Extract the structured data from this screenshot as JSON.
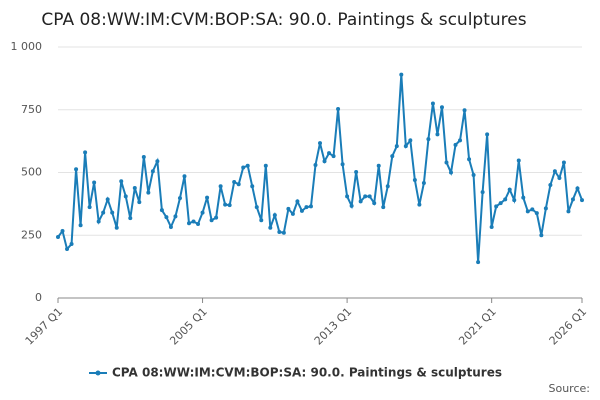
{
  "chart_data": {
    "type": "line",
    "title": "CPA 08:WW:IM:CVM:BOP:SA: 90.0. Paintings & sculptures",
    "source": "Source:",
    "categories": [
      "1997 Q1",
      null,
      null,
      null,
      null,
      null,
      null,
      null,
      null,
      null,
      null,
      null,
      null,
      null,
      null,
      null,
      null,
      null,
      null,
      null,
      null,
      null,
      null,
      null,
      null,
      null,
      null,
      null,
      null,
      null,
      null,
      null,
      "2005 Q1",
      null,
      null,
      null,
      null,
      null,
      null,
      null,
      null,
      null,
      null,
      null,
      null,
      null,
      null,
      null,
      null,
      null,
      null,
      null,
      null,
      null,
      null,
      null,
      null,
      null,
      null,
      null,
      null,
      null,
      null,
      null,
      "2013 Q1",
      null,
      null,
      null,
      null,
      null,
      null,
      null,
      null,
      null,
      null,
      null,
      null,
      null,
      null,
      null,
      null,
      null,
      null,
      null,
      null,
      null,
      null,
      null,
      null,
      null,
      null,
      null,
      null,
      null,
      null,
      null,
      "2021 Q1",
      null,
      null,
      null,
      null,
      null,
      null,
      null,
      null,
      null,
      null,
      null,
      null,
      null,
      null,
      null,
      null,
      null,
      null,
      null,
      "2026 Q1"
    ],
    "series": [
      {
        "name": "CPA 08:WW:IM:CVM:BOP:SA: 90.0. Paintings & sculptures",
        "color": "#1a7db8",
        "values": [
          243,
          267,
          195,
          215,
          513,
          290,
          580,
          362,
          460,
          305,
          340,
          393,
          340,
          280,
          465,
          405,
          318,
          438,
          382,
          562,
          420,
          505,
          545,
          350,
          322,
          283,
          325,
          398,
          485,
          298,
          305,
          295,
          340,
          400,
          310,
          320,
          445,
          372,
          370,
          462,
          453,
          520,
          527,
          445,
          362,
          310,
          527,
          280,
          330,
          263,
          260,
          355,
          335,
          385,
          347,
          362,
          365,
          530,
          617,
          545,
          577,
          565,
          753,
          533,
          405,
          367,
          502,
          385,
          405,
          405,
          378,
          527,
          362,
          445,
          565,
          605,
          890,
          605,
          628,
          470,
          372,
          458,
          633,
          775,
          652,
          760,
          540,
          500,
          610,
          628,
          748,
          553,
          490,
          143,
          422,
          652,
          283,
          365,
          378,
          393,
          432,
          390,
          548,
          400,
          345,
          353,
          338,
          250,
          357,
          450,
          505,
          478,
          540,
          345,
          393,
          437,
          390
        ]
      }
    ],
    "ylim": [
      0,
      1000
    ],
    "yticks": [
      0,
      250,
      500,
      750,
      {
        "value": 1000,
        "label": "1 000"
      }
    ],
    "grid": true,
    "legend": "bottom"
  }
}
